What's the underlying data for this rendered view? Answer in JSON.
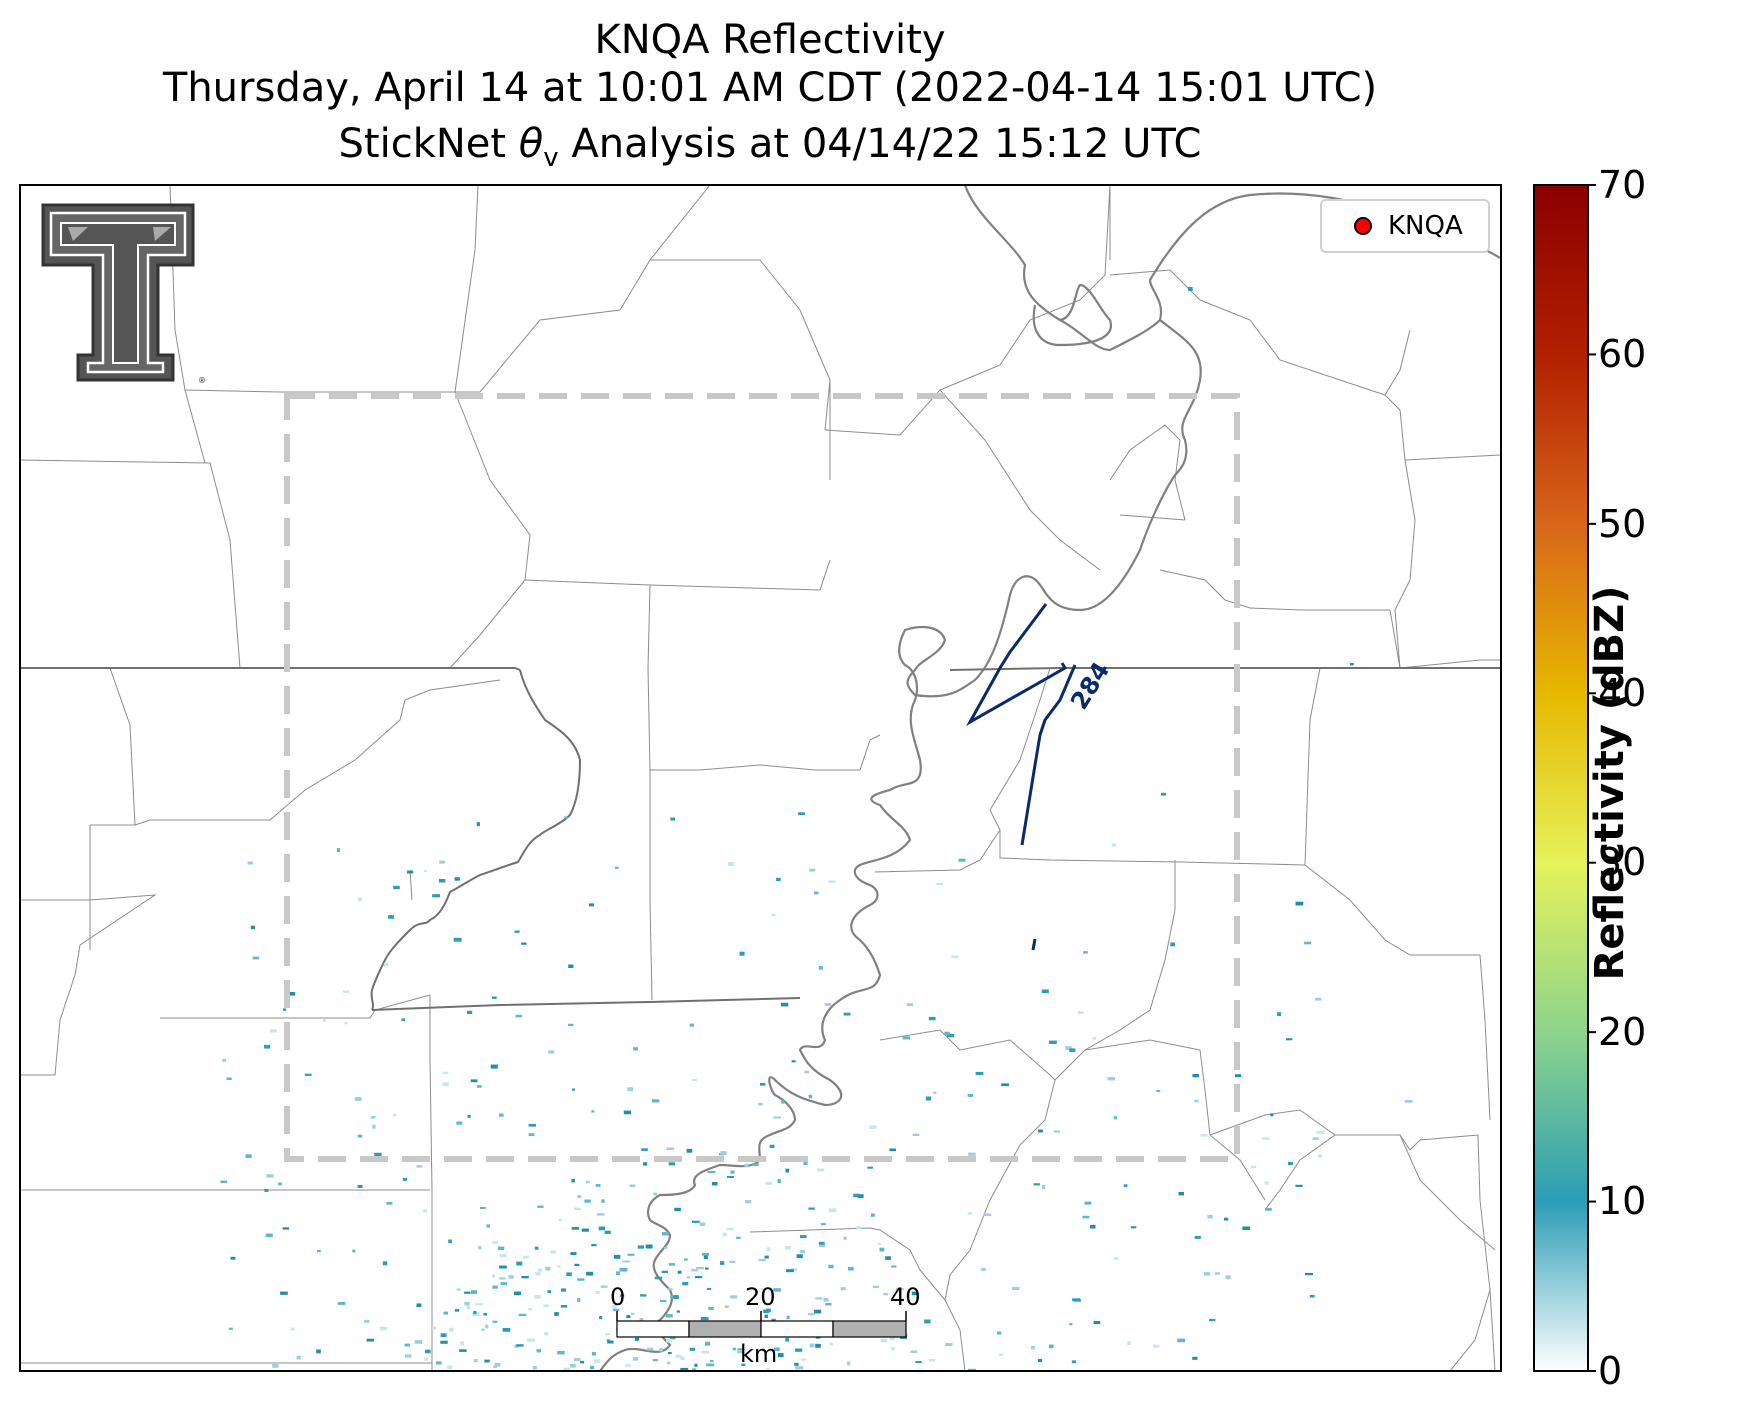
{
  "titles": {
    "line1": "KNQA Reflectivity",
    "line2": "Thursday, April 14 at 10:01 AM CDT (2022-04-14 15:01 UTC)",
    "line3_pre": "StickNet ",
    "line3_symbol": "θ",
    "line3_sub": "v",
    "line3_post": " Analysis at 04/14/22 15:12 UTC"
  },
  "legend": {
    "label": "KNQA",
    "marker_color": "#ff0000"
  },
  "contour": {
    "label": "284",
    "color": "#0a2a6e"
  },
  "colorbar": {
    "label": "Reflectivity (dBZ)",
    "ticks": [
      "0",
      "10",
      "20",
      "30",
      "40",
      "50",
      "60",
      "70"
    ],
    "min": 0,
    "max": 70,
    "colors": [
      "#ffffff",
      "#2b9db6",
      "#8ed48a",
      "#e6f25a",
      "#e6b800",
      "#d9661a",
      "#b22000",
      "#8b0000"
    ]
  },
  "scale_bar": {
    "ticks": [
      "0",
      "20",
      "40"
    ],
    "unit": "km"
  },
  "logo": {
    "name": "Texas Tech Double T"
  }
}
